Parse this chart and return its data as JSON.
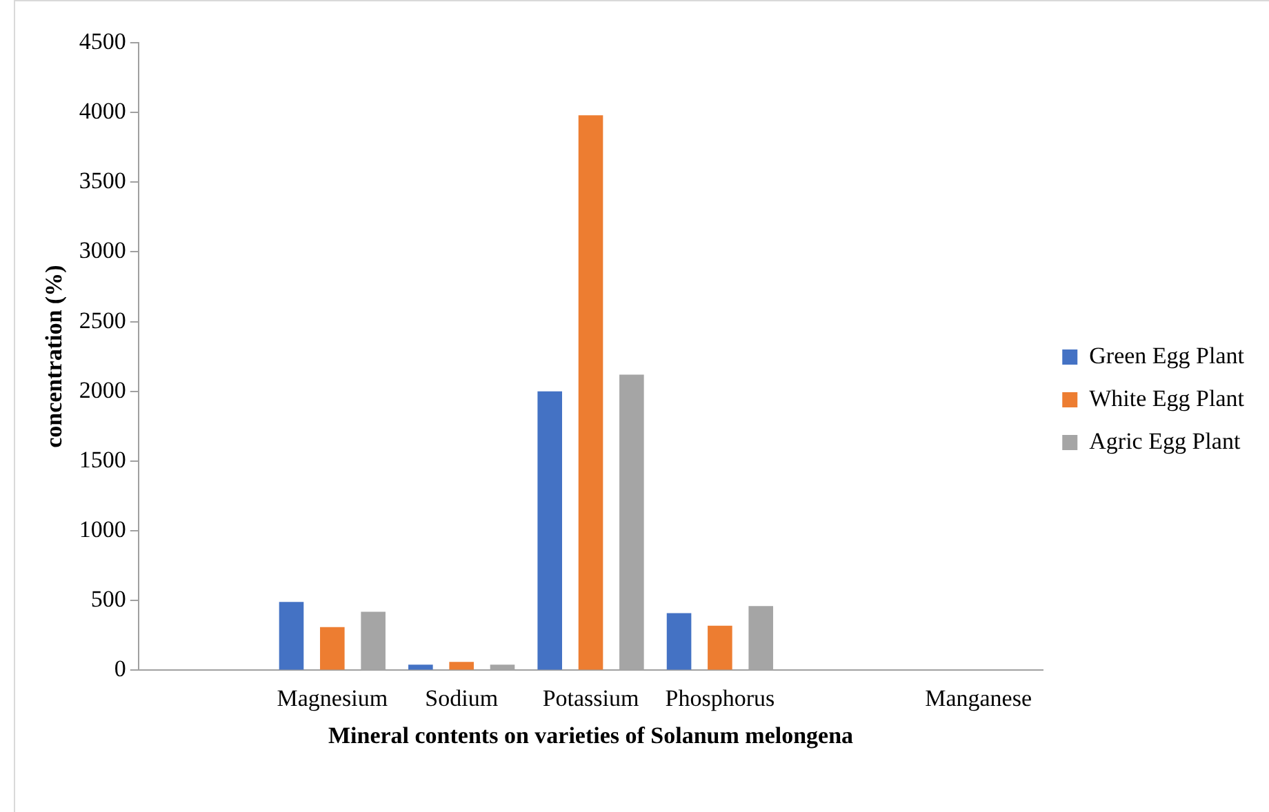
{
  "chart_data": {
    "type": "bar",
    "xlabel": "Mineral contents on varieties of Solanum melongena",
    "ylabel": "concentration (%)",
    "categories": [
      null,
      "Magnesium",
      "Sodium",
      "Potassium",
      "Phosphorus",
      null,
      "Manganese"
    ],
    "series": [
      {
        "name": "Green Egg Plant",
        "color": "#4472c4",
        "values": [
          null,
          490,
          40,
          2000,
          410,
          null,
          null
        ]
      },
      {
        "name": "White Egg Plant",
        "color": "#ed7d31",
        "values": [
          null,
          310,
          60,
          3980,
          320,
          null,
          null
        ]
      },
      {
        "name": "Agric Egg Plant",
        "color": "#a5a5a5",
        "values": [
          null,
          420,
          40,
          2120,
          460,
          null,
          null
        ]
      }
    ],
    "ylim": [
      0,
      4500
    ],
    "yticks": [
      0,
      500,
      1000,
      1500,
      2000,
      2500,
      3000,
      3500,
      4000,
      4500
    ],
    "grid": false,
    "legend": "right"
  }
}
